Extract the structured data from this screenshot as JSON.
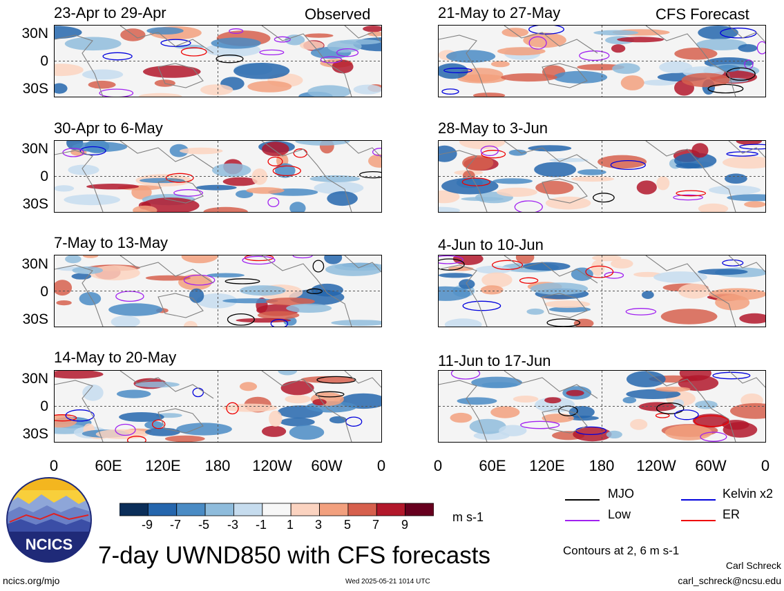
{
  "chart_data": {
    "type": "heatmap",
    "title": "7-day UWND850 with CFS forecasts",
    "units": "m s-1",
    "lat_ticks": [
      "30N",
      "0",
      "30S"
    ],
    "lon_ticks": [
      "0",
      "60E",
      "120E",
      "180",
      "120W",
      "60W",
      "0"
    ],
    "observed_label": "Observed",
    "forecast_label": "CFS Forecast",
    "observed_panels": [
      "23-Apr to 29-Apr",
      "30-Apr to 6-May",
      "7-May to 13-May",
      "14-May to 20-May"
    ],
    "forecast_panels": [
      "21-May to 27-May",
      "28-May to 3-Jun",
      "4-Jun to 10-Jun",
      "11-Jun to 17-Jun"
    ],
    "colorbar": {
      "ticks": [
        "-9",
        "-7",
        "-5",
        "-3",
        "-1",
        "1",
        "3",
        "5",
        "7",
        "9"
      ],
      "colors": [
        "#0b2e59",
        "#2566ad",
        "#4a8bc4",
        "#8fbcdc",
        "#c6dcee",
        "#f7f7f7",
        "#fbd3c0",
        "#f2a07e",
        "#d6604d",
        "#b2182b",
        "#67001f"
      ]
    },
    "contour_legend": [
      {
        "label": "MJO",
        "color": "#000000"
      },
      {
        "label": "Kelvin x2",
        "color": "#0000dd"
      },
      {
        "label": "Low",
        "color": "#a020f0"
      },
      {
        "label": "ER",
        "color": "#ee0000"
      }
    ],
    "contours_note": "Contours at 2, 6 m s-1"
  },
  "footer": {
    "logo_text": "NCICS",
    "url": "ncics.org/mjo",
    "timestamp": "Wed 2025-05-21 1014 UTC",
    "author": "Carl Schreck",
    "email": "carl_schreck@ncsu.edu"
  }
}
